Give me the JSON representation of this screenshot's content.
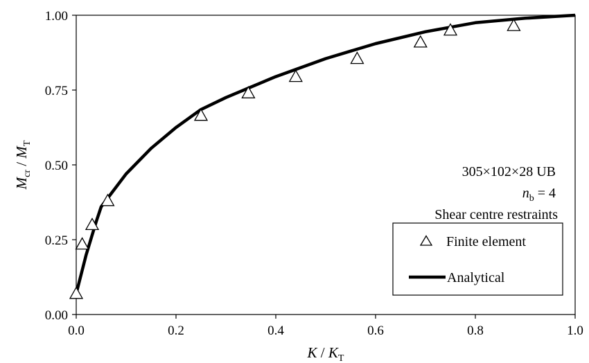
{
  "chart_data": {
    "type": "scatter",
    "x_label": {
      "main": "K",
      "sub": "T",
      "sep": " / "
    },
    "y_label": {
      "main": "M",
      "sub_num": "cr",
      "sub_den": "T",
      "sep": " / "
    },
    "xlim": [
      0,
      1
    ],
    "ylim": [
      0,
      1
    ],
    "x_ticks": [
      "0.0",
      "0.2",
      "0.4",
      "0.6",
      "0.8",
      "1.0"
    ],
    "y_ticks": [
      "0.00",
      "0.25",
      "0.50",
      "0.75",
      "1.00"
    ],
    "grid": false,
    "annotations": {
      "section": "305×102×28 UB",
      "nb_symbol": "n",
      "nb_sub": "b",
      "nb_value": " = 4",
      "restraint": "Shear centre restraints"
    },
    "series": [
      {
        "name": "Finite element",
        "style": "open-triangle",
        "points": [
          [
            0.0,
            0.07
          ],
          [
            0.012,
            0.235
          ],
          [
            0.032,
            0.3
          ],
          [
            0.063,
            0.38
          ],
          [
            0.25,
            0.665
          ],
          [
            0.345,
            0.74
          ],
          [
            0.44,
            0.795
          ],
          [
            0.563,
            0.855
          ],
          [
            0.69,
            0.91
          ],
          [
            0.75,
            0.95
          ],
          [
            0.877,
            0.965
          ]
        ]
      },
      {
        "name": "Analytical",
        "style": "thick-line",
        "points": [
          [
            0.0,
            0.07
          ],
          [
            0.02,
            0.2
          ],
          [
            0.04,
            0.31
          ],
          [
            0.05,
            0.36
          ],
          [
            0.1,
            0.47
          ],
          [
            0.15,
            0.555
          ],
          [
            0.2,
            0.625
          ],
          [
            0.25,
            0.685
          ],
          [
            0.3,
            0.725
          ],
          [
            0.4,
            0.795
          ],
          [
            0.5,
            0.855
          ],
          [
            0.6,
            0.905
          ],
          [
            0.7,
            0.945
          ],
          [
            0.8,
            0.975
          ],
          [
            0.9,
            0.99
          ],
          [
            1.0,
            1.0
          ]
        ]
      }
    ],
    "legend": {
      "position": "bottom-right"
    },
    "colors": {
      "line": "#000000",
      "marker": "#000000",
      "background": "#ffffff"
    }
  }
}
